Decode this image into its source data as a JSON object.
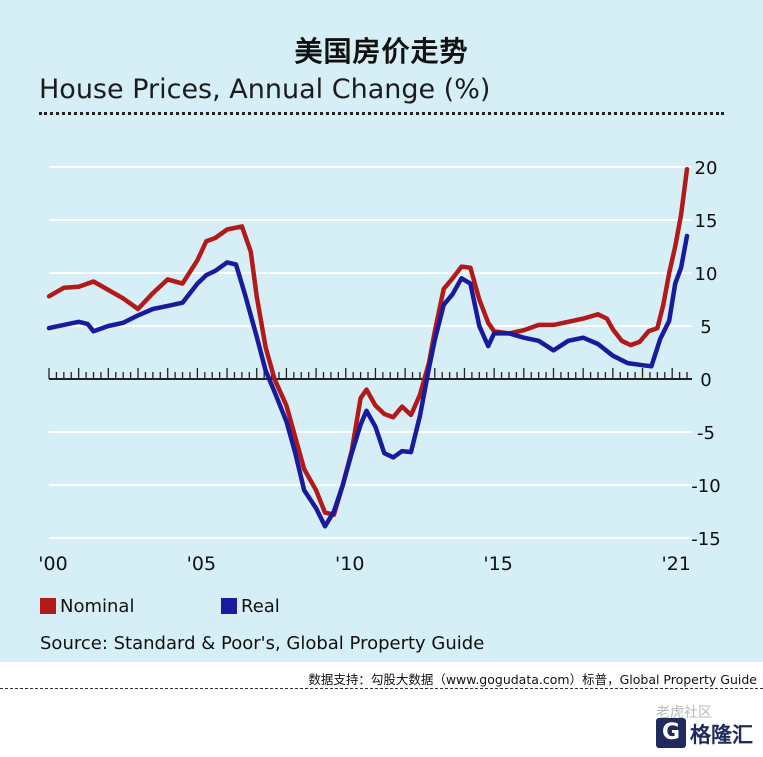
{
  "header": {
    "cn_title": "美国房价走势",
    "en_title": "House Prices, Annual Change (%)"
  },
  "chart_data": {
    "type": "line",
    "title": "House Prices, Annual Change (%)",
    "xlim": [
      2000,
      2021.6
    ],
    "ylim": [
      -15,
      20
    ],
    "x_ticks": [
      {
        "value": 2000,
        "label": "'00"
      },
      {
        "value": 2005,
        "label": "'05"
      },
      {
        "value": 2010,
        "label": "'10"
      },
      {
        "value": 2015,
        "label": "'15"
      },
      {
        "value": 2021,
        "label": "'21"
      }
    ],
    "y_ticks": [
      20,
      15,
      10,
      5,
      0,
      -5,
      -10,
      -15
    ],
    "grid": "horizontal",
    "legend_position": "bottom-left",
    "series": [
      {
        "name": "Nominal",
        "color": "#b21a1a",
        "points": [
          [
            2000.0,
            7.8
          ],
          [
            2000.5,
            8.6
          ],
          [
            2001.0,
            8.7
          ],
          [
            2001.5,
            9.2
          ],
          [
            2002.0,
            8.4
          ],
          [
            2002.5,
            7.6
          ],
          [
            2003.0,
            6.6
          ],
          [
            2003.5,
            8.1
          ],
          [
            2004.0,
            9.4
          ],
          [
            2004.5,
            9.0
          ],
          [
            2005.0,
            11.2
          ],
          [
            2005.3,
            13.0
          ],
          [
            2005.6,
            13.3
          ],
          [
            2006.0,
            14.1
          ],
          [
            2006.5,
            14.4
          ],
          [
            2006.8,
            12.0
          ],
          [
            2007.0,
            7.8
          ],
          [
            2007.3,
            3.0
          ],
          [
            2007.6,
            0.0
          ],
          [
            2008.0,
            -2.5
          ],
          [
            2008.3,
            -5.5
          ],
          [
            2008.6,
            -8.5
          ],
          [
            2009.0,
            -10.5
          ],
          [
            2009.3,
            -12.6
          ],
          [
            2009.6,
            -12.8
          ],
          [
            2009.9,
            -10.0
          ],
          [
            2010.2,
            -6.8
          ],
          [
            2010.5,
            -1.8
          ],
          [
            2010.7,
            -1.0
          ],
          [
            2011.0,
            -2.5
          ],
          [
            2011.3,
            -3.3
          ],
          [
            2011.6,
            -3.6
          ],
          [
            2011.9,
            -2.6
          ],
          [
            2012.2,
            -3.4
          ],
          [
            2012.5,
            -1.5
          ],
          [
            2012.8,
            1.5
          ],
          [
            2013.0,
            4.5
          ],
          [
            2013.3,
            8.5
          ],
          [
            2013.6,
            9.5
          ],
          [
            2013.9,
            10.6
          ],
          [
            2014.2,
            10.5
          ],
          [
            2014.5,
            7.5
          ],
          [
            2014.8,
            5.3
          ],
          [
            2015.0,
            4.5
          ],
          [
            2015.5,
            4.3
          ],
          [
            2016.0,
            4.6
          ],
          [
            2016.5,
            5.1
          ],
          [
            2017.0,
            5.1
          ],
          [
            2017.5,
            5.4
          ],
          [
            2018.0,
            5.7
          ],
          [
            2018.5,
            6.1
          ],
          [
            2018.8,
            5.7
          ],
          [
            2019.0,
            4.7
          ],
          [
            2019.3,
            3.6
          ],
          [
            2019.6,
            3.2
          ],
          [
            2019.9,
            3.5
          ],
          [
            2020.2,
            4.5
          ],
          [
            2020.5,
            4.8
          ],
          [
            2020.7,
            7.0
          ],
          [
            2020.9,
            10.0
          ],
          [
            2021.1,
            12.5
          ],
          [
            2021.3,
            15.5
          ],
          [
            2021.5,
            19.8
          ]
        ]
      },
      {
        "name": "Real",
        "color": "#1a1a9c",
        "points": [
          [
            2000.0,
            4.8
          ],
          [
            2000.5,
            5.1
          ],
          [
            2001.0,
            5.4
          ],
          [
            2001.3,
            5.2
          ],
          [
            2001.5,
            4.5
          ],
          [
            2002.0,
            5.0
          ],
          [
            2002.5,
            5.3
          ],
          [
            2003.0,
            6.0
          ],
          [
            2003.5,
            6.6
          ],
          [
            2004.0,
            6.9
          ],
          [
            2004.5,
            7.2
          ],
          [
            2005.0,
            9.0
          ],
          [
            2005.3,
            9.8
          ],
          [
            2005.6,
            10.2
          ],
          [
            2006.0,
            11.0
          ],
          [
            2006.3,
            10.8
          ],
          [
            2006.6,
            8.0
          ],
          [
            2007.0,
            4.0
          ],
          [
            2007.3,
            0.8
          ],
          [
            2007.6,
            -1.2
          ],
          [
            2008.0,
            -4.0
          ],
          [
            2008.3,
            -7.0
          ],
          [
            2008.6,
            -10.5
          ],
          [
            2009.0,
            -12.2
          ],
          [
            2009.3,
            -13.9
          ],
          [
            2009.6,
            -12.5
          ],
          [
            2009.9,
            -10.0
          ],
          [
            2010.2,
            -7.0
          ],
          [
            2010.5,
            -4.3
          ],
          [
            2010.7,
            -3.0
          ],
          [
            2011.0,
            -4.5
          ],
          [
            2011.3,
            -7.0
          ],
          [
            2011.6,
            -7.4
          ],
          [
            2011.9,
            -6.8
          ],
          [
            2012.2,
            -6.9
          ],
          [
            2012.5,
            -3.5
          ],
          [
            2012.8,
            1.0
          ],
          [
            2013.0,
            3.7
          ],
          [
            2013.3,
            7.0
          ],
          [
            2013.6,
            8.0
          ],
          [
            2013.9,
            9.5
          ],
          [
            2014.2,
            9.0
          ],
          [
            2014.5,
            5.0
          ],
          [
            2014.8,
            3.1
          ],
          [
            2015.0,
            4.3
          ],
          [
            2015.5,
            4.3
          ],
          [
            2016.0,
            3.9
          ],
          [
            2016.5,
            3.6
          ],
          [
            2017.0,
            2.7
          ],
          [
            2017.5,
            3.6
          ],
          [
            2018.0,
            3.9
          ],
          [
            2018.5,
            3.3
          ],
          [
            2019.0,
            2.2
          ],
          [
            2019.5,
            1.5
          ],
          [
            2020.0,
            1.3
          ],
          [
            2020.3,
            1.2
          ],
          [
            2020.6,
            3.8
          ],
          [
            2020.9,
            5.5
          ],
          [
            2021.1,
            9.0
          ],
          [
            2021.3,
            10.5
          ],
          [
            2021.5,
            13.5
          ]
        ]
      }
    ]
  },
  "legend": {
    "items": [
      {
        "name": "Nominal",
        "color": "#b21a1a"
      },
      {
        "name": "Real",
        "color": "#1a1a9c"
      }
    ]
  },
  "source": "Source: Standard & Poor's, Global Property Guide",
  "support": "数据支持：勾股大数据（www.gogudata.com）标普，Global Property Guide",
  "logo": {
    "badge": "G",
    "text": "格隆汇",
    "community": "老虎社区"
  }
}
